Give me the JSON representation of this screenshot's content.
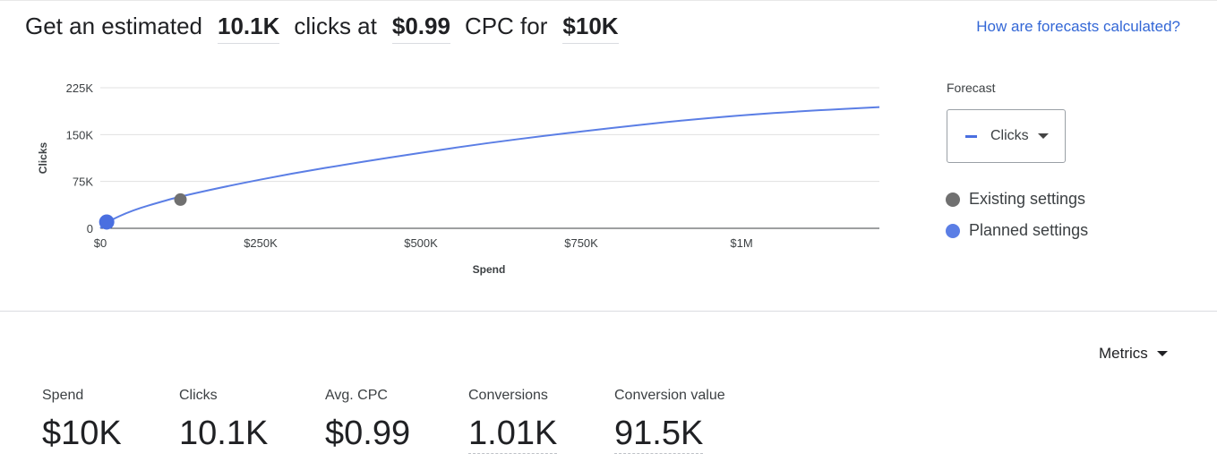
{
  "headline": {
    "prefix": "Get an estimated",
    "clicks": "10.1K",
    "clicks_at": "clicks at",
    "cpc": "$0.99",
    "cpc_for": "CPC for",
    "spend": "$10K"
  },
  "forecast_link": "How are forecasts calculated?",
  "chart_data": {
    "type": "line",
    "xlabel": "Spend",
    "ylabel": "Clicks",
    "x_ticks": [
      "$0",
      "$250K",
      "$500K",
      "$750K",
      "$1M"
    ],
    "x_tick_values": [
      0,
      250000,
      500000,
      750000,
      1000000
    ],
    "y_ticks": [
      "0",
      "75K",
      "150K",
      "225K"
    ],
    "y_tick_values": [
      0,
      75000,
      150000,
      225000
    ],
    "xlim": [
      0,
      1215000
    ],
    "ylim": [
      0,
      225000
    ],
    "grid": true,
    "series": [
      {
        "name": "Clicks",
        "color": "#5b7ee5",
        "x": [
          0,
          10000,
          50000,
          100000,
          125000,
          200000,
          300000,
          400000,
          500000,
          600000,
          700000,
          800000,
          900000,
          1000000,
          1100000,
          1215000
        ],
        "y": [
          0,
          10100,
          29000,
          44000,
          51000,
          68000,
          88000,
          105000,
          121000,
          136000,
          149000,
          161000,
          172000,
          181000,
          188000,
          194000
        ]
      }
    ],
    "points": [
      {
        "name": "Existing settings",
        "x": 125000,
        "y": 46000,
        "color": "#707070"
      },
      {
        "name": "Planned settings",
        "x": 10000,
        "y": 10100,
        "color": "#4a6fe0"
      }
    ]
  },
  "forecast_panel": {
    "label": "Forecast",
    "selected": "Clicks",
    "legend": [
      {
        "label": "Existing settings",
        "color": "#707070"
      },
      {
        "label": "Planned settings",
        "color": "#5b7ee5"
      }
    ]
  },
  "metrics_menu": "Metrics",
  "metrics": [
    {
      "label": "Spend",
      "value": "$10K"
    },
    {
      "label": "Clicks",
      "value": "10.1K"
    },
    {
      "label": "Avg. CPC",
      "value": "$0.99"
    },
    {
      "label": "Conversions",
      "value": "1.01K"
    },
    {
      "label": "Conversion value",
      "value": "91.5K"
    }
  ]
}
